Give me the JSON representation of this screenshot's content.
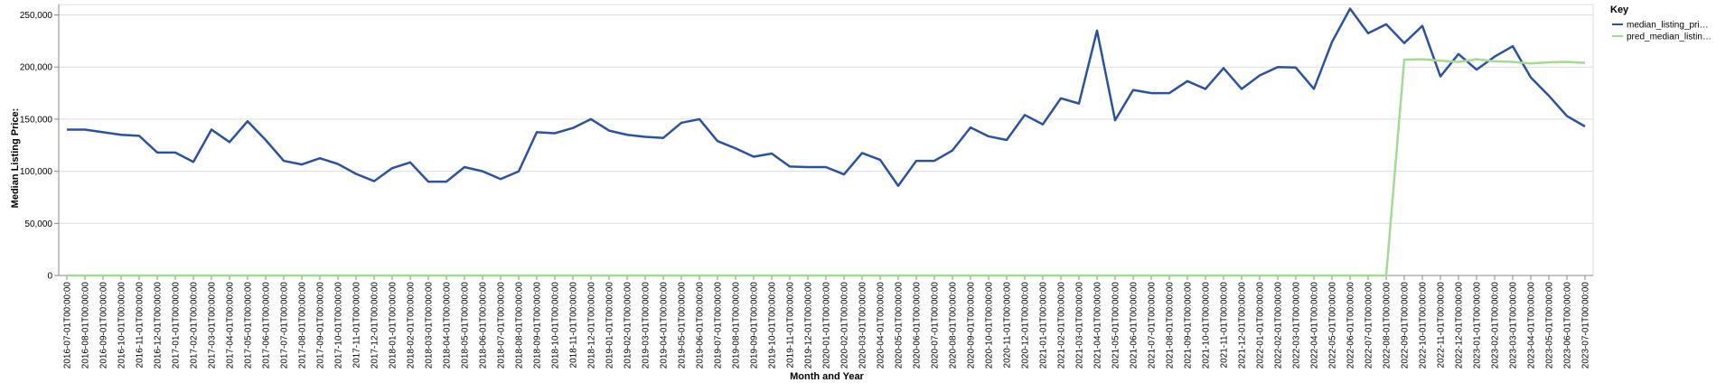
{
  "chart_data": {
    "type": "line",
    "x_label": "Month and Year",
    "y_label": "Median Listing Price:",
    "legend_title": "Key",
    "legend_position": "top-right",
    "grid": true,
    "categories": [
      "2016-07-01T00:00:00",
      "2016-08-01T00:00:00",
      "2016-09-01T00:00:00",
      "2016-10-01T00:00:00",
      "2016-11-01T00:00:00",
      "2016-12-01T00:00:00",
      "2017-01-01T00:00:00",
      "2017-02-01T00:00:00",
      "2017-03-01T00:00:00",
      "2017-04-01T00:00:00",
      "2017-05-01T00:00:00",
      "2017-06-01T00:00:00",
      "2017-07-01T00:00:00",
      "2017-08-01T00:00:00",
      "2017-09-01T00:00:00",
      "2017-10-01T00:00:00",
      "2017-11-01T00:00:00",
      "2017-12-01T00:00:00",
      "2018-01-01T00:00:00",
      "2018-02-01T00:00:00",
      "2018-03-01T00:00:00",
      "2018-04-01T00:00:00",
      "2018-05-01T00:00:00",
      "2018-06-01T00:00:00",
      "2018-07-01T00:00:00",
      "2018-08-01T00:00:00",
      "2018-09-01T00:00:00",
      "2018-10-01T00:00:00",
      "2018-11-01T00:00:00",
      "2018-12-01T00:00:00",
      "2019-01-01T00:00:00",
      "2019-02-01T00:00:00",
      "2019-03-01T00:00:00",
      "2019-04-01T00:00:00",
      "2019-05-01T00:00:00",
      "2019-06-01T00:00:00",
      "2019-07-01T00:00:00",
      "2019-08-01T00:00:00",
      "2019-09-01T00:00:00",
      "2019-10-01T00:00:00",
      "2019-11-01T00:00:00",
      "2019-12-01T00:00:00",
      "2020-01-01T00:00:00",
      "2020-02-01T00:00:00",
      "2020-03-01T00:00:00",
      "2020-04-01T00:00:00",
      "2020-05-01T00:00:00",
      "2020-06-01T00:00:00",
      "2020-07-01T00:00:00",
      "2020-08-01T00:00:00",
      "2020-09-01T00:00:00",
      "2020-10-01T00:00:00",
      "2020-11-01T00:00:00",
      "2020-12-01T00:00:00",
      "2021-01-01T00:00:00",
      "2021-02-01T00:00:00",
      "2021-03-01T00:00:00",
      "2021-04-01T00:00:00",
      "2021-05-01T00:00:00",
      "2021-06-01T00:00:00",
      "2021-07-01T00:00:00",
      "2021-08-01T00:00:00",
      "2021-09-01T00:00:00",
      "2021-10-01T00:00:00",
      "2021-11-01T00:00:00",
      "2021-12-01T00:00:00",
      "2022-01-01T00:00:00",
      "2022-02-01T00:00:00",
      "2022-03-01T00:00:00",
      "2022-04-01T00:00:00",
      "2022-05-01T00:00:00",
      "2022-06-01T00:00:00",
      "2022-07-01T00:00:00",
      "2022-08-01T00:00:00",
      "2022-09-01T00:00:00",
      "2022-10-01T00:00:00",
      "2022-11-01T00:00:00",
      "2022-12-01T00:00:00",
      "2023-01-01T00:00:00",
      "2023-02-01T00:00:00",
      "2023-03-01T00:00:00",
      "2023-04-01T00:00:00",
      "2023-05-01T00:00:00",
      "2023-06-01T00:00:00",
      "2023-07-01T00:00:00"
    ],
    "series": [
      {
        "name": "median_listing_pri…",
        "color": "#2b52a0",
        "values": [
          140000,
          140000,
          137500,
          135000,
          134000,
          118000,
          118000,
          109000,
          140000,
          128000,
          148000,
          130000,
          110000,
          106500,
          112500,
          107000,
          97500,
          90500,
          103000,
          108500,
          90000,
          90000,
          104000,
          100000,
          92500,
          99900,
          137500,
          136500,
          141500,
          150000,
          139000,
          135000,
          133000,
          132000,
          146500,
          150000,
          129000,
          122000,
          114000,
          117000,
          104500,
          104000,
          104000,
          97000,
          117500,
          111000,
          86000,
          110000,
          110000,
          120000,
          142000,
          133500,
          130000,
          154000,
          145000,
          170000,
          165000,
          235000,
          149000,
          178000,
          175000,
          175000,
          186500,
          179000,
          199000,
          179000,
          192000,
          200000,
          199500,
          179000,
          224000,
          256000,
          232500,
          241000,
          223000,
          239500,
          191000,
          212500,
          197500,
          210000,
          220000,
          190000,
          172500,
          153000,
          143000
        ]
      },
      {
        "name": "pred_median_listin…",
        "color": "#a3da94",
        "values": [
          0,
          0,
          0,
          0,
          0,
          0,
          0,
          0,
          0,
          0,
          0,
          0,
          0,
          0,
          0,
          0,
          0,
          0,
          0,
          0,
          0,
          0,
          0,
          0,
          0,
          0,
          0,
          0,
          0,
          0,
          0,
          0,
          0,
          0,
          0,
          0,
          0,
          0,
          0,
          0,
          0,
          0,
          0,
          0,
          0,
          0,
          0,
          0,
          0,
          0,
          0,
          0,
          0,
          0,
          0,
          0,
          0,
          0,
          0,
          0,
          0,
          0,
          0,
          0,
          0,
          0,
          0,
          0,
          0,
          0,
          0,
          0,
          0,
          0,
          207000,
          207500,
          206000,
          205000,
          207500,
          205500,
          205000,
          203500,
          204500,
          205000,
          204000
        ]
      }
    ],
    "ylim": [
      0,
      260000
    ],
    "yticks": [
      0,
      {
        "value": 50000,
        "label": "50,000"
      },
      {
        "value": 100000,
        "label": "100,000"
      },
      {
        "value": 150000,
        "label": "150,000"
      },
      {
        "value": 200000,
        "label": "200,000"
      },
      {
        "value": 250000,
        "label": "250,000"
      }
    ]
  }
}
